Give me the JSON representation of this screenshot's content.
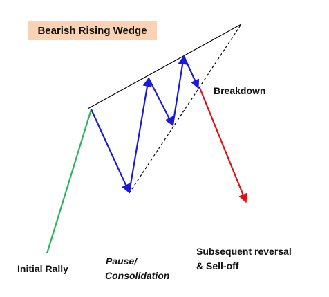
{
  "title": "Bearish Rising Wedge",
  "labels": {
    "breakdown": "Breakdown",
    "initial_rally": "Initial Rally",
    "pause_line1": "Pause/",
    "pause_line2": "Consolidation",
    "reversal_line1": "Subsequent reversal",
    "reversal_line2": "& Sell-off"
  },
  "colors": {
    "title_background": "#fbd3b4",
    "initial_rally": "#2bb35c",
    "wedge_zigzag": "#1a1ad8",
    "sell_off": "#e01010",
    "upper_trendline": "#000000",
    "lower_trendline": "#000000"
  }
}
